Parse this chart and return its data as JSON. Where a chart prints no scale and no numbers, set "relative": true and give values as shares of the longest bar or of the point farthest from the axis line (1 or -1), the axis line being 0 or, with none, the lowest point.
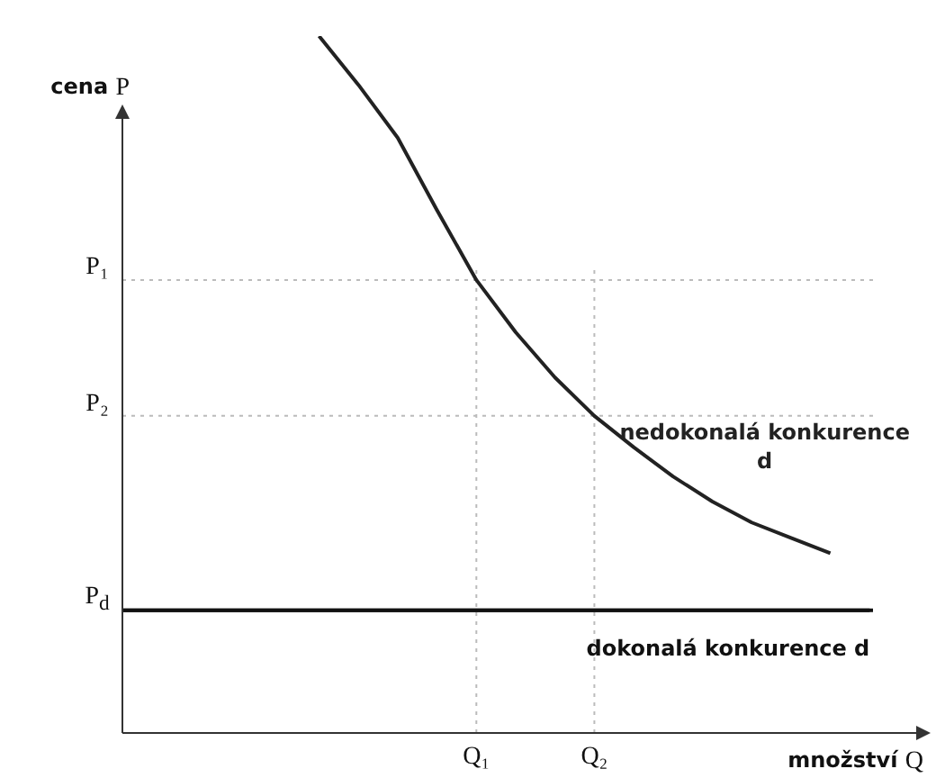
{
  "chart_data": {
    "type": "line",
    "relative": true,
    "xlabel": "množství Q",
    "ylabel": "cena P",
    "categories": [
      null,
      null,
      null,
      null,
      null,
      null,
      null,
      null,
      null,
      "Q₁",
      null,
      null,
      "Q₂",
      null,
      null,
      null,
      null,
      null,
      null,
      null,
      null
    ],
    "series": [
      {
        "name": "nedokonalá konkurence d",
        "color": "#222222",
        "values": [
          null,
          null,
          null,
          null,
          null,
          1,
          0.93,
          0.854,
          0.75,
          0.65,
          0.575,
          0.51,
          0.455,
          0.41,
          0.368,
          0.332,
          0.302,
          0.28,
          0.258,
          null,
          null
        ]
      },
      {
        "name": "dokonalá konkurence d",
        "color": "#111111",
        "values": [
          0.176,
          0.176,
          0.176,
          0.176,
          0.176,
          0.176,
          0.176,
          0.176,
          0.176,
          0.176,
          0.176,
          0.176,
          0.176,
          0.176,
          0.176,
          0.176,
          0.176,
          0.176,
          0.176,
          0.176,
          null
        ]
      }
    ],
    "ref_lines": [
      {
        "axis": "y",
        "value": 0.65,
        "label": "P₁",
        "color": "#bbbbbb",
        "line_style": "dotted"
      },
      {
        "axis": "y",
        "value": 0.455,
        "label": "P₂",
        "color": "#bbbbbb",
        "line_style": "dotted"
      },
      {
        "axis": "y",
        "value": 0.176,
        "label": "P$_{d}$",
        "color": "#111111",
        "line_style": "solid"
      },
      {
        "axis": "x",
        "value": "Q₁",
        "color": "#bbbbbb",
        "line_style": "dotted"
      },
      {
        "axis": "x",
        "value": "Q₂",
        "color": "#bbbbbb",
        "line_style": "dotted"
      }
    ],
    "legend": false,
    "marker": "none",
    "line_style": "solid"
  }
}
